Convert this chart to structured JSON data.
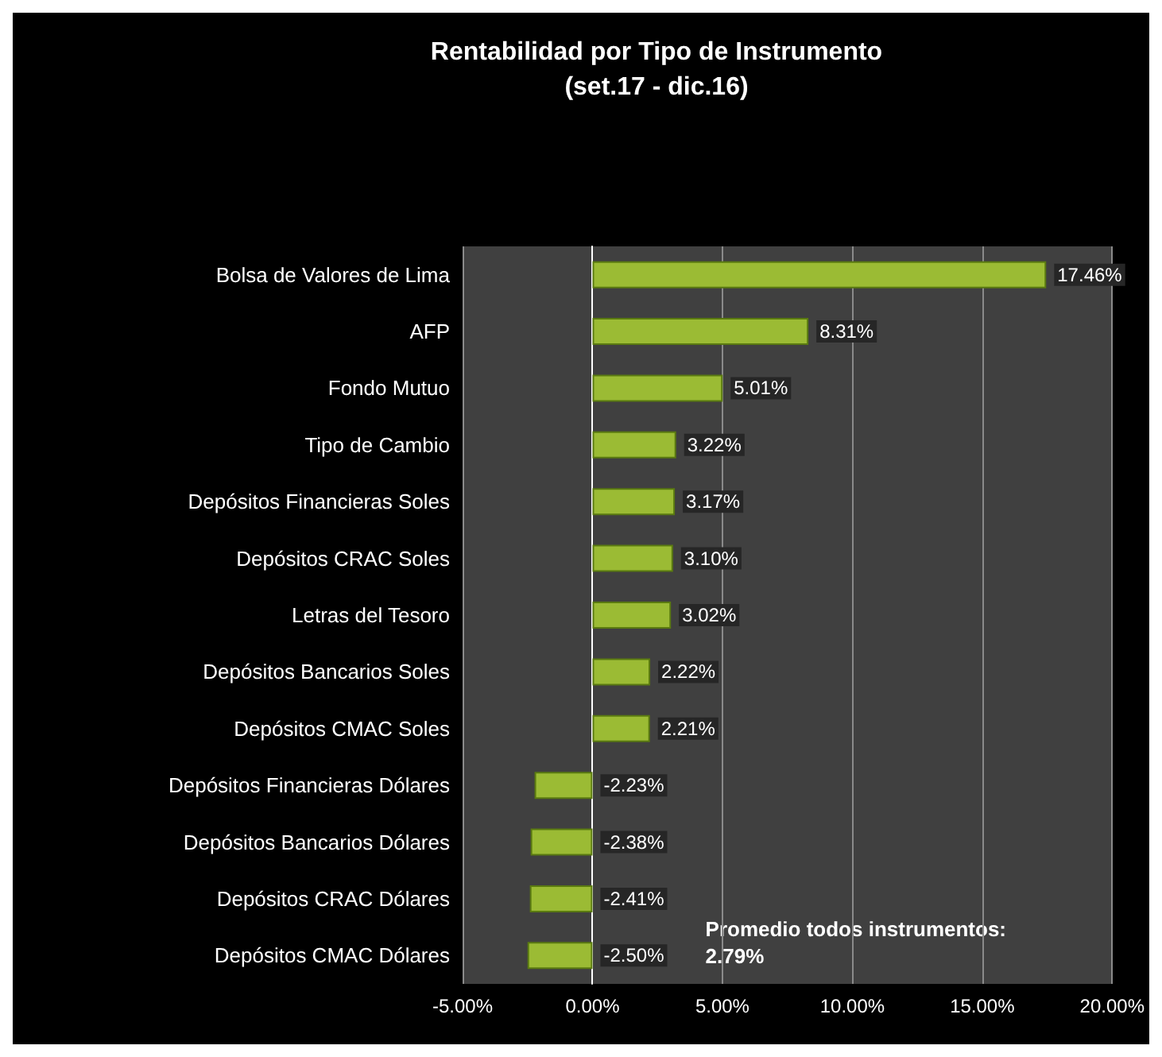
{
  "chart_data": {
    "type": "bar",
    "orientation": "horizontal",
    "title": "Rentabilidad por Tipo de Instrumento",
    "subtitle": "(set.17 - dic.16)",
    "categories": [
      "Bolsa de Valores de Lima",
      "AFP",
      "Fondo Mutuo",
      "Tipo de Cambio",
      "Depósitos Financieras Soles",
      "Depósitos CRAC Soles",
      "Letras del Tesoro",
      "Depósitos Bancarios Soles",
      "Depósitos CMAC Soles",
      "Depósitos Financieras Dólares",
      "Depósitos Bancarios Dólares",
      "Depósitos CRAC Dólares",
      "Depósitos CMAC Dólares"
    ],
    "values": [
      17.46,
      8.31,
      5.01,
      3.22,
      3.17,
      3.1,
      3.02,
      2.22,
      2.21,
      -2.23,
      -2.38,
      -2.41,
      -2.5
    ],
    "value_labels": [
      "17.46%",
      "8.31%",
      "5.01%",
      "3.22%",
      "3.17%",
      "3.10%",
      "3.02%",
      "2.22%",
      "2.21%",
      "-2.23%",
      "-2.38%",
      "-2.41%",
      "-2.50%"
    ],
    "color": "#9bbb34",
    "xlim": [
      -5,
      20
    ],
    "xticks": [
      {
        "value": -5,
        "label": "-5.00%"
      },
      {
        "value": 0,
        "label": "0.00%"
      },
      {
        "value": 5,
        "label": "5.00%"
      },
      {
        "value": 10,
        "label": "10.00%"
      },
      {
        "value": 15,
        "label": "15.00%"
      },
      {
        "value": 20,
        "label": "20.00%"
      }
    ],
    "grid": "x",
    "annotations": [
      "Promedio todos instrumentos:\n2.79%"
    ]
  }
}
